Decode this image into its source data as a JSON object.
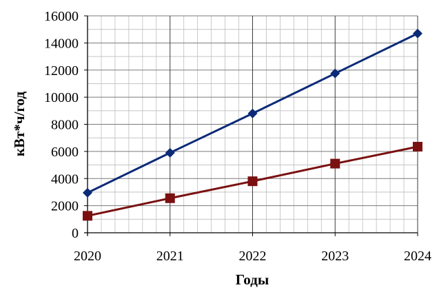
{
  "chart_data": {
    "type": "line",
    "title": "",
    "xlabel": "Годы",
    "ylabel": "кВт*ч/год",
    "x": [
      2020,
      2021,
      2022,
      2023,
      2024
    ],
    "x_tick_labels": [
      "2020",
      "2021",
      "2022",
      "2023",
      "2024"
    ],
    "ylim": [
      0,
      16000
    ],
    "y_ticks": [
      0,
      2000,
      4000,
      6000,
      8000,
      10000,
      12000,
      14000,
      16000
    ],
    "y_tick_labels": [
      "0",
      "2000",
      "4000",
      "6000",
      "8000",
      "10000",
      "12000",
      "14000",
      "16000"
    ],
    "grid": true,
    "legend": "none",
    "series": [
      {
        "values": [
          2950,
          5900,
          8800,
          11750,
          14700
        ],
        "color": "#0b2a78",
        "marker": "diamond"
      },
      {
        "values": [
          1250,
          2550,
          3800,
          5100,
          6350
        ],
        "color": "#7a1010",
        "marker": "square"
      }
    ]
  }
}
